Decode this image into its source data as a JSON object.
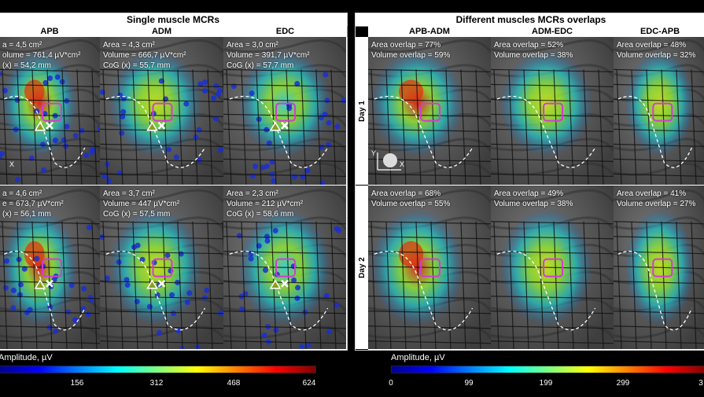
{
  "left": {
    "title": "Single muscle MCRs",
    "columns": [
      "APB",
      "ADM",
      "EDC"
    ],
    "rows": [
      [
        {
          "lines": [
            "a = 4,5 cm²",
            "olume = 761,4 µV*cm²",
            "(x) = 54,2 mm"
          ]
        },
        {
          "lines": [
            "Area = 4,3 cm²",
            "Volume = 666,7 µV*cm²",
            "CoG (x) = 55,7 mm"
          ]
        },
        {
          "lines": [
            "Area = 3,0 cm²",
            "Volume = 391,7 µV*cm²",
            "CoG (x) = 57,7 mm"
          ]
        }
      ],
      [
        {
          "lines": [
            "a = 4,6 cm²",
            "e = 673,7 µV*cm²",
            "(x) = 56,1 mm"
          ]
        },
        {
          "lines": [
            "Area = 3,7 cm²",
            "Volume = 447 µV*cm²",
            "CoG (x) = 57,5 mm"
          ]
        },
        {
          "lines": [
            "Area = 2,3 cm²",
            "Volume = 212 µV*cm²",
            "CoG (x) = 58,6 mm"
          ]
        }
      ]
    ],
    "colorbar": {
      "label": "Amplitude, µV",
      "ticks": [
        "156",
        "312",
        "468",
        "624"
      ]
    }
  },
  "right": {
    "title": "Different muscles MCRs overlaps",
    "columns": [
      "APB-ADM",
      "ADM-EDC",
      "EDC-APB"
    ],
    "row_labels": [
      "Day 1",
      "Day 2"
    ],
    "rows": [
      [
        {
          "lines": [
            "Area overlap = 77%",
            "Volume overlap = 59%"
          ]
        },
        {
          "lines": [
            "Area overlap = 52%",
            "Volume overlap = 38%"
          ]
        },
        {
          "lines": [
            "Area overlap = 48%",
            "Volume overlap = 32%"
          ]
        }
      ],
      [
        {
          "lines": [
            "Area overlap = 68%",
            "Volume overlap = 55%"
          ]
        },
        {
          "lines": [
            "Area overlap = 49%",
            "Volume overlap = 38%"
          ]
        },
        {
          "lines": [
            "Area overlap = 41%",
            "Volume overlap = 27%"
          ]
        }
      ]
    ],
    "axes": {
      "y": "Y",
      "x": "X"
    },
    "colorbar": {
      "label": "Amplitude, µV",
      "ticks": [
        "0",
        "99",
        "199",
        "299",
        "3"
      ]
    }
  },
  "left_axes": {
    "x": "X"
  },
  "colors": {
    "marker_box": "#d23cd2",
    "background": "#000000"
  }
}
